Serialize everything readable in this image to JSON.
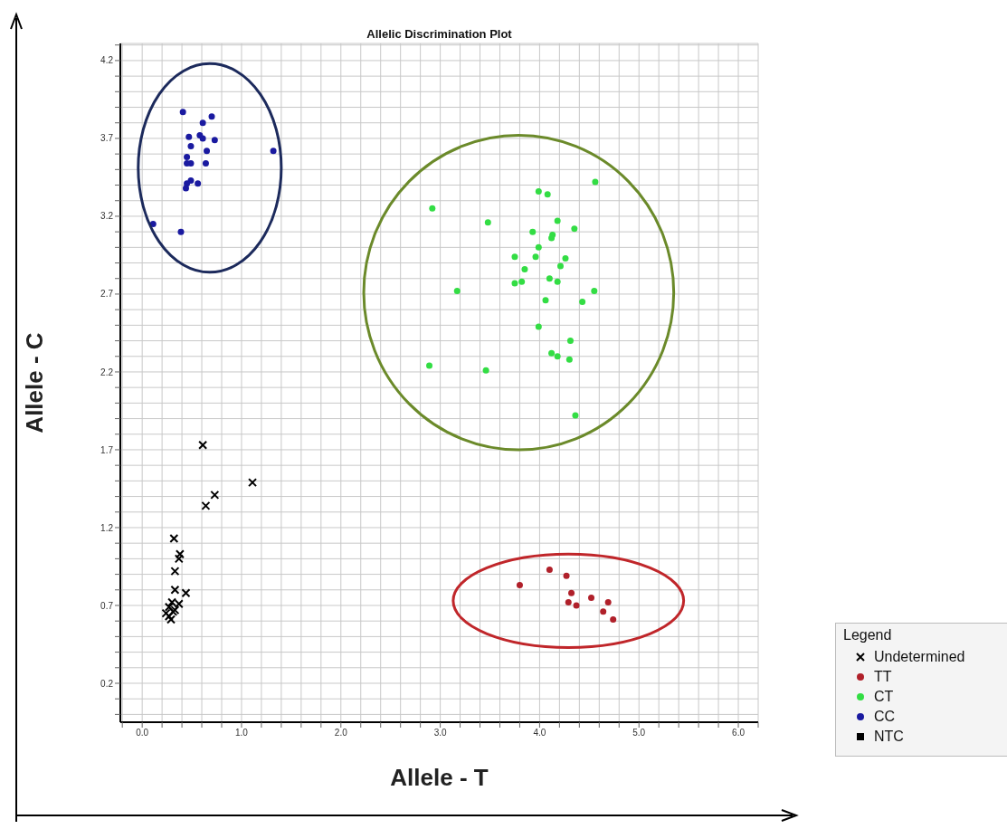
{
  "chart_data": {
    "type": "scatter",
    "title": "Allelic Discrimination Plot",
    "xlabel": "Allele - T",
    "ylabel": "Allele - C",
    "legend_title": "Legend",
    "legend": "bottom right",
    "grid": true,
    "xlim": [
      -0.22,
      6.2
    ],
    "ylim": [
      -0.05,
      4.31
    ],
    "xticks": [
      {
        "value": -0.2,
        "label": null
      },
      {
        "value": 0,
        "label": "0.0"
      },
      {
        "value": 0.2,
        "label": null
      },
      {
        "value": 0.4,
        "label": null
      },
      {
        "value": 0.6,
        "label": null
      },
      {
        "value": 0.8,
        "label": null
      },
      {
        "value": 1,
        "label": "1.0"
      },
      {
        "value": 1.2,
        "label": null
      },
      {
        "value": 1.4,
        "label": null
      },
      {
        "value": 1.6,
        "label": null
      },
      {
        "value": 1.8,
        "label": null
      },
      {
        "value": 2,
        "label": "2.0"
      },
      {
        "value": 2.2,
        "label": null
      },
      {
        "value": 2.4,
        "label": null
      },
      {
        "value": 2.6,
        "label": null
      },
      {
        "value": 2.8,
        "label": null
      },
      {
        "value": 3,
        "label": "3.0"
      },
      {
        "value": 3.2,
        "label": null
      },
      {
        "value": 3.4,
        "label": null
      },
      {
        "value": 3.6,
        "label": null
      },
      {
        "value": 3.8,
        "label": null
      },
      {
        "value": 4,
        "label": "4.0"
      },
      {
        "value": 4.2,
        "label": null
      },
      {
        "value": 4.4,
        "label": null
      },
      {
        "value": 4.6,
        "label": null
      },
      {
        "value": 4.8,
        "label": null
      },
      {
        "value": 5,
        "label": "5.0"
      },
      {
        "value": 5.2,
        "label": null
      },
      {
        "value": 5.4,
        "label": null
      },
      {
        "value": 5.6,
        "label": null
      },
      {
        "value": 5.8,
        "label": null
      },
      {
        "value": 6,
        "label": "6.0"
      },
      {
        "value": 6.2,
        "label": null
      }
    ],
    "yticks": [
      {
        "value": 0,
        "label": null
      },
      {
        "value": 0.1,
        "label": null
      },
      0.2,
      {
        "value": 0.3,
        "label": null
      },
      {
        "value": 0.4,
        "label": null
      },
      {
        "value": 0.5,
        "label": null
      },
      {
        "value": 0.6,
        "label": null
      },
      0.7,
      {
        "value": 0.8,
        "label": null
      },
      {
        "value": 0.9,
        "label": null
      },
      {
        "value": 1,
        "label": null
      },
      {
        "value": 1.1,
        "label": null
      },
      1.2,
      {
        "value": 1.3,
        "label": null
      },
      {
        "value": 1.4,
        "label": null
      },
      {
        "value": 1.5,
        "label": null
      },
      {
        "value": 1.6,
        "label": null
      },
      1.7,
      {
        "value": 1.8,
        "label": null
      },
      {
        "value": 1.9,
        "label": null
      },
      {
        "value": 2,
        "label": null
      },
      {
        "value": 2.1,
        "label": null
      },
      2.2,
      {
        "value": 2.3,
        "label": null
      },
      {
        "value": 2.4,
        "label": null
      },
      {
        "value": 2.5,
        "label": null
      },
      {
        "value": 2.6,
        "label": null
      },
      2.7,
      {
        "value": 2.8,
        "label": null
      },
      {
        "value": 2.9,
        "label": null
      },
      {
        "value": 3,
        "label": null
      },
      {
        "value": 3.1,
        "label": null
      },
      3.2,
      {
        "value": 3.3,
        "label": null
      },
      {
        "value": 3.4,
        "label": null
      },
      {
        "value": 3.5,
        "label": null
      },
      {
        "value": 3.6,
        "label": null
      },
      3.7,
      {
        "value": 3.8,
        "label": null
      },
      {
        "value": 3.9,
        "label": null
      },
      {
        "value": 4,
        "label": null
      },
      {
        "value": 4.1,
        "label": null
      },
      4.2,
      {
        "value": 4.3,
        "label": null
      }
    ],
    "series": [
      {
        "name": "Undetermined",
        "color": "#000000",
        "marker": "cross",
        "x": [
          0.61,
          1.11,
          0.73,
          0.64,
          0.32,
          0.38,
          0.37,
          0.33,
          0.33,
          0.44,
          0.37,
          0.3,
          0.27,
          0.24,
          0.27,
          0.31,
          0.29,
          0.33
        ],
        "values": [
          1.73,
          1.49,
          1.41,
          1.34,
          1.13,
          1.03,
          1.0,
          0.92,
          0.8,
          0.78,
          0.71,
          0.72,
          0.69,
          0.65,
          0.63,
          0.66,
          0.61,
          0.67
        ]
      },
      {
        "name": "TT",
        "color": "#b0202a",
        "marker": "circle",
        "x": [
          3.8,
          4.1,
          4.27,
          4.32,
          4.29,
          4.37,
          4.52,
          4.69,
          4.64,
          4.74
        ],
        "values": [
          0.83,
          0.93,
          0.89,
          0.78,
          0.72,
          0.7,
          0.75,
          0.72,
          0.66,
          0.61
        ]
      },
      {
        "name": "CT",
        "color": "#33dd44",
        "marker": "circle",
        "x": [
          4.56,
          3.99,
          4.08,
          2.92,
          3.48,
          4.18,
          4.35,
          3.93,
          4.13,
          4.12,
          3.99,
          3.75,
          3.96,
          4.26,
          4.21,
          3.85,
          4.1,
          4.18,
          3.82,
          3.75,
          3.17,
          4.55,
          4.06,
          4.43,
          3.99,
          4.31,
          4.12,
          4.18,
          4.3,
          2.89,
          3.46,
          4.36
        ],
        "values": [
          3.42,
          3.36,
          3.34,
          3.25,
          3.16,
          3.17,
          3.12,
          3.1,
          3.08,
          3.06,
          3.0,
          2.94,
          2.94,
          2.93,
          2.88,
          2.86,
          2.8,
          2.78,
          2.78,
          2.77,
          2.72,
          2.72,
          2.66,
          2.65,
          2.49,
          2.4,
          2.32,
          2.3,
          2.28,
          2.24,
          2.21,
          1.92
        ]
      },
      {
        "name": "CC",
        "color": "#1a1aa0",
        "marker": "circle",
        "x": [
          0.41,
          0.7,
          0.61,
          0.47,
          0.58,
          0.61,
          0.73,
          0.49,
          0.65,
          1.32,
          0.45,
          0.49,
          0.45,
          0.64,
          0.49,
          0.45,
          0.56,
          0.44,
          0.11,
          0.39
        ],
        "values": [
          3.87,
          3.84,
          3.8,
          3.71,
          3.72,
          3.7,
          3.69,
          3.65,
          3.62,
          3.62,
          3.58,
          3.54,
          3.54,
          3.54,
          3.43,
          3.41,
          3.41,
          3.38,
          3.15,
          3.1
        ]
      },
      {
        "name": "NTC",
        "color": "#000000",
        "marker": "square"
      }
    ]
  }
}
